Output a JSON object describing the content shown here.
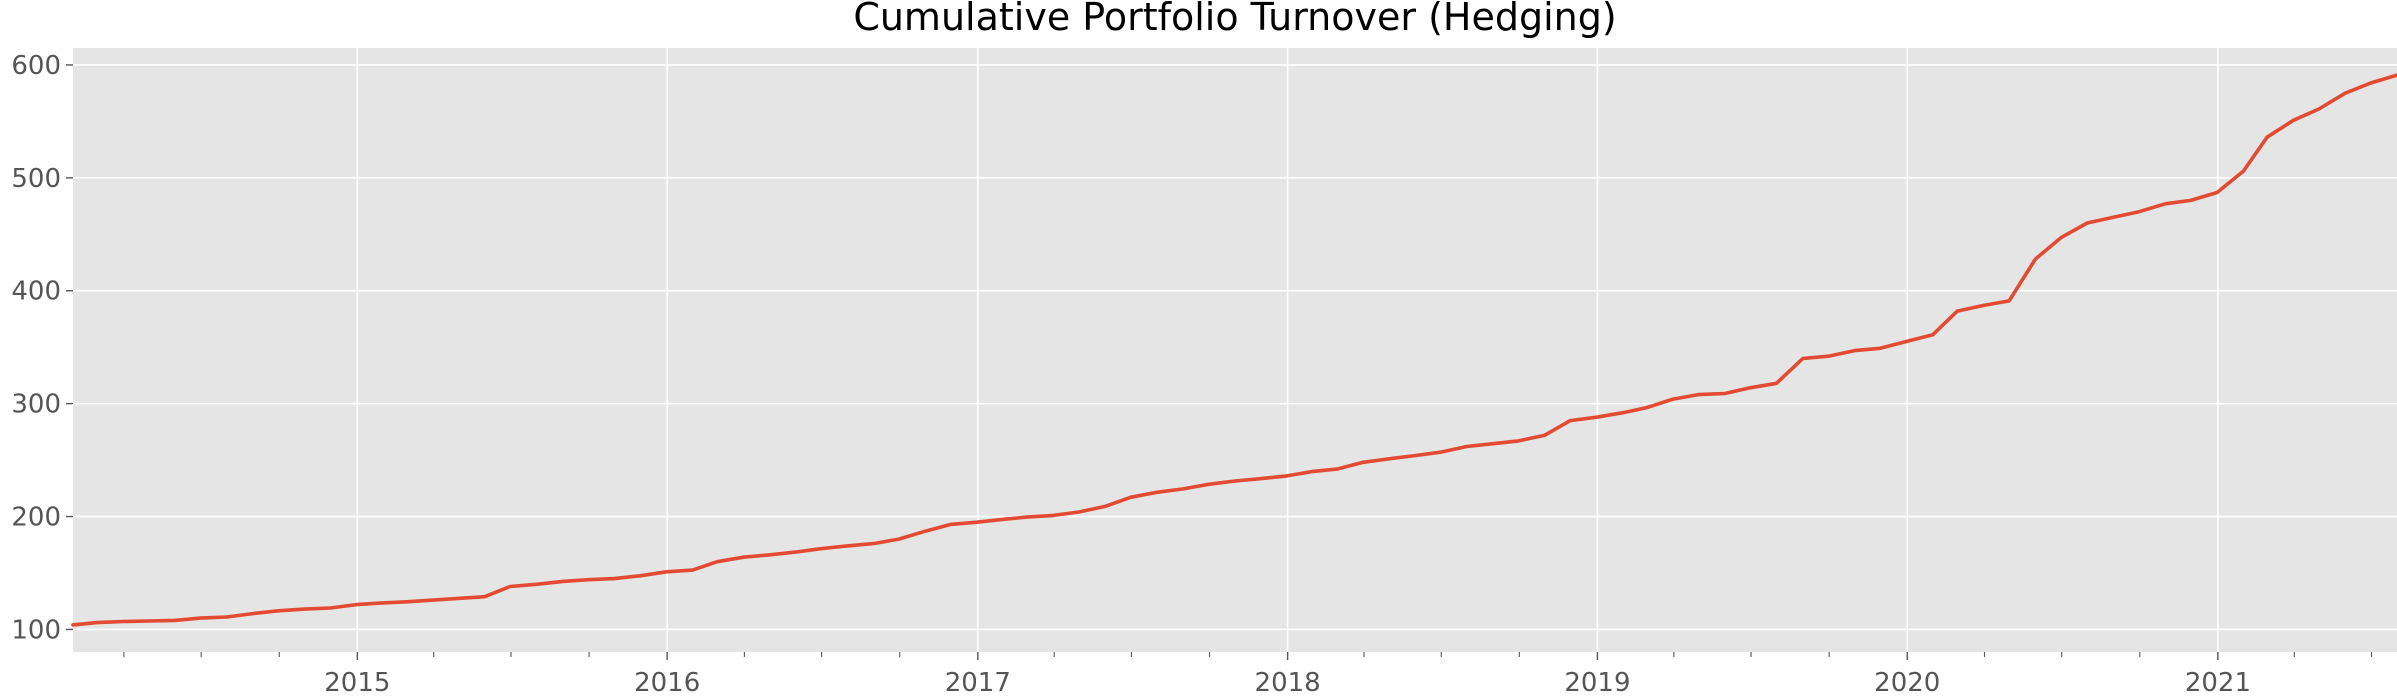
{
  "chart_data": {
    "type": "line",
    "title": "Cumulative Portfolio Turnover (Hedging)",
    "xlabel": "",
    "ylabel": "",
    "x_axis": {
      "kind": "date",
      "range": [
        "2014-01-31",
        "2021-07-31"
      ],
      "tick_labels": [
        "2015",
        "2016",
        "2017",
        "2018",
        "2019",
        "2020",
        "2021"
      ],
      "tick_dates": [
        "2015-01-01",
        "2016-01-01",
        "2017-01-01",
        "2018-01-01",
        "2019-01-01",
        "2020-01-01",
        "2021-01-01"
      ],
      "minor_ticks": "quarterly"
    },
    "y_axis": {
      "range": [
        80,
        615
      ],
      "ticks": [
        100,
        200,
        300,
        400,
        500,
        600
      ],
      "tick_labels": [
        "100",
        "200",
        "300",
        "400",
        "500",
        "600"
      ]
    },
    "grid": true,
    "style": {
      "background": "#ffffff",
      "plot_background": "#e5e5e5",
      "grid_color": "#ffffff",
      "line_color": "#e24a33",
      "tick_label_color": "#555555"
    },
    "series": [
      {
        "color": "#e24a33",
        "x": [
          "2014-01-31",
          "2014-02-28",
          "2014-03-31",
          "2014-04-30",
          "2014-05-31",
          "2014-06-30",
          "2014-07-31",
          "2014-08-31",
          "2014-09-30",
          "2014-10-31",
          "2014-11-30",
          "2014-12-31",
          "2015-01-31",
          "2015-02-28",
          "2015-03-31",
          "2015-04-30",
          "2015-05-31",
          "2015-06-30",
          "2015-07-31",
          "2015-08-31",
          "2015-09-30",
          "2015-10-31",
          "2015-11-30",
          "2015-12-31",
          "2016-01-31",
          "2016-02-29",
          "2016-03-31",
          "2016-04-30",
          "2016-05-31",
          "2016-06-30",
          "2016-07-31",
          "2016-08-31",
          "2016-09-30",
          "2016-10-31",
          "2016-11-30",
          "2016-12-31",
          "2017-01-31",
          "2017-02-28",
          "2017-03-31",
          "2017-04-30",
          "2017-05-31",
          "2017-06-30",
          "2017-07-31",
          "2017-08-31",
          "2017-09-30",
          "2017-10-31",
          "2017-11-30",
          "2017-12-31",
          "2018-01-31",
          "2018-02-28",
          "2018-03-31",
          "2018-04-30",
          "2018-05-31",
          "2018-06-30",
          "2018-07-31",
          "2018-08-31",
          "2018-09-30",
          "2018-10-31",
          "2018-11-30",
          "2018-12-31",
          "2019-01-31",
          "2019-02-28",
          "2019-03-31",
          "2019-04-30",
          "2019-05-31",
          "2019-06-30",
          "2019-07-31",
          "2019-08-31",
          "2019-09-30",
          "2019-10-31",
          "2019-11-30",
          "2019-12-31",
          "2020-01-31",
          "2020-02-29",
          "2020-03-31",
          "2020-04-30",
          "2020-05-31",
          "2020-06-30",
          "2020-07-31",
          "2020-08-31",
          "2020-09-30",
          "2020-10-31",
          "2020-11-30",
          "2020-12-31",
          "2021-01-31",
          "2021-02-28",
          "2021-03-31",
          "2021-04-30",
          "2021-05-31",
          "2021-06-30",
          "2021-07-31"
        ],
        "y": [
          104,
          106,
          107,
          107.5,
          108,
          110,
          111,
          114,
          116.5,
          118,
          119,
          122,
          123.5,
          124.5,
          126,
          127.5,
          129,
          138,
          140,
          142.5,
          144,
          145,
          147.5,
          151,
          152.5,
          160,
          164,
          166,
          168.5,
          171.5,
          174,
          176,
          180,
          187,
          193,
          195,
          197.5,
          199.5,
          201,
          204,
          209,
          217,
          221.5,
          224.5,
          228.5,
          231.5,
          233.5,
          236,
          240,
          242,
          248,
          251,
          254,
          257,
          262,
          264.5,
          267,
          272,
          285,
          288,
          292,
          296.5,
          304,
          308,
          309,
          314,
          318,
          340,
          342,
          347,
          349,
          355,
          361,
          382,
          387,
          391,
          428,
          447,
          460,
          465,
          470,
          477,
          480,
          487,
          506,
          536,
          551,
          561,
          575,
          584,
          591
        ]
      }
    ]
  }
}
